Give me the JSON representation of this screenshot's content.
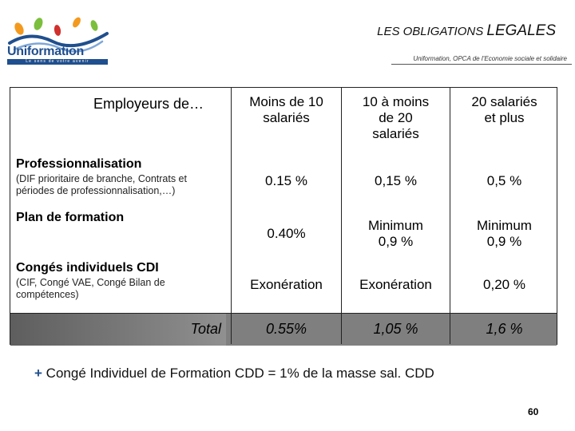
{
  "logo": {
    "name": "Uniformation",
    "tagline": "Le sens de votre avenir"
  },
  "header": {
    "title_small": "LES OBLIGATIONS",
    "title_big": "LEGALES",
    "subtitle": "Uniformation, OPCA de l’Economie sociale et solidaire"
  },
  "table": {
    "corner": "Employeurs de…",
    "columns": [
      {
        "line1": "Moins de 10",
        "line2": "salariés",
        "line3": ""
      },
      {
        "line1": "10 à moins",
        "line2": "de 20",
        "line3": "salariés"
      },
      {
        "line1": "20 salariés",
        "line2": "et plus",
        "line3": ""
      }
    ],
    "rows": [
      {
        "label": "Professionnalisation",
        "sub": "(DIF prioritaire de branche, Contrats et périodes de professionnalisation,…)",
        "values": [
          [
            "0.15 %"
          ],
          [
            "0,15 %"
          ],
          [
            "0,5 %"
          ]
        ]
      },
      {
        "label": "Plan de formation",
        "sub": "",
        "values": [
          [
            "0.40%"
          ],
          [
            "Minimum",
            "0,9 %"
          ],
          [
            "Minimum",
            "0,9 %"
          ]
        ]
      },
      {
        "label": "Congés individuels CDI",
        "sub": "(CIF, Congé VAE, Congé Bilan de compétences)",
        "values": [
          [
            "Exonération"
          ],
          [
            "Exonération"
          ],
          [
            "0,20 %"
          ]
        ]
      }
    ],
    "total": {
      "label": "Total",
      "values": [
        "0.55%",
        "1,05 %",
        "1,6 %"
      ]
    }
  },
  "note": {
    "plus": "+",
    "text": "Congé Individuel de Formation CDD = 1% de la masse sal. CDD"
  },
  "page_number": "60",
  "colors": {
    "brand_blue": "#1f4f8e",
    "brand_green": "#7bbf3c",
    "brand_orange": "#f39a1e",
    "brand_red": "#d0312d",
    "total_grey": "#7f7f7f"
  }
}
